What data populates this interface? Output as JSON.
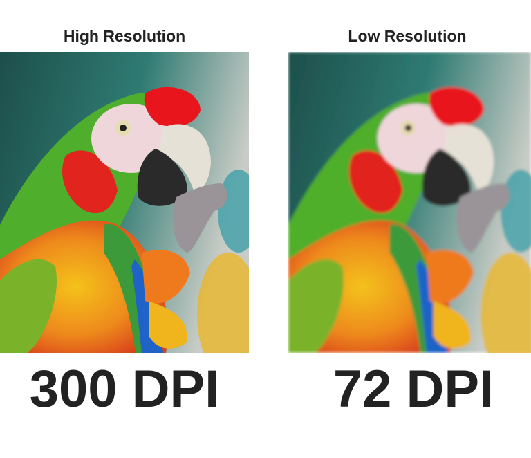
{
  "panels": [
    {
      "title": "High Resolution",
      "label": "300 DPI"
    },
    {
      "title": "Low Resolution",
      "label": "72 DPI"
    }
  ]
}
